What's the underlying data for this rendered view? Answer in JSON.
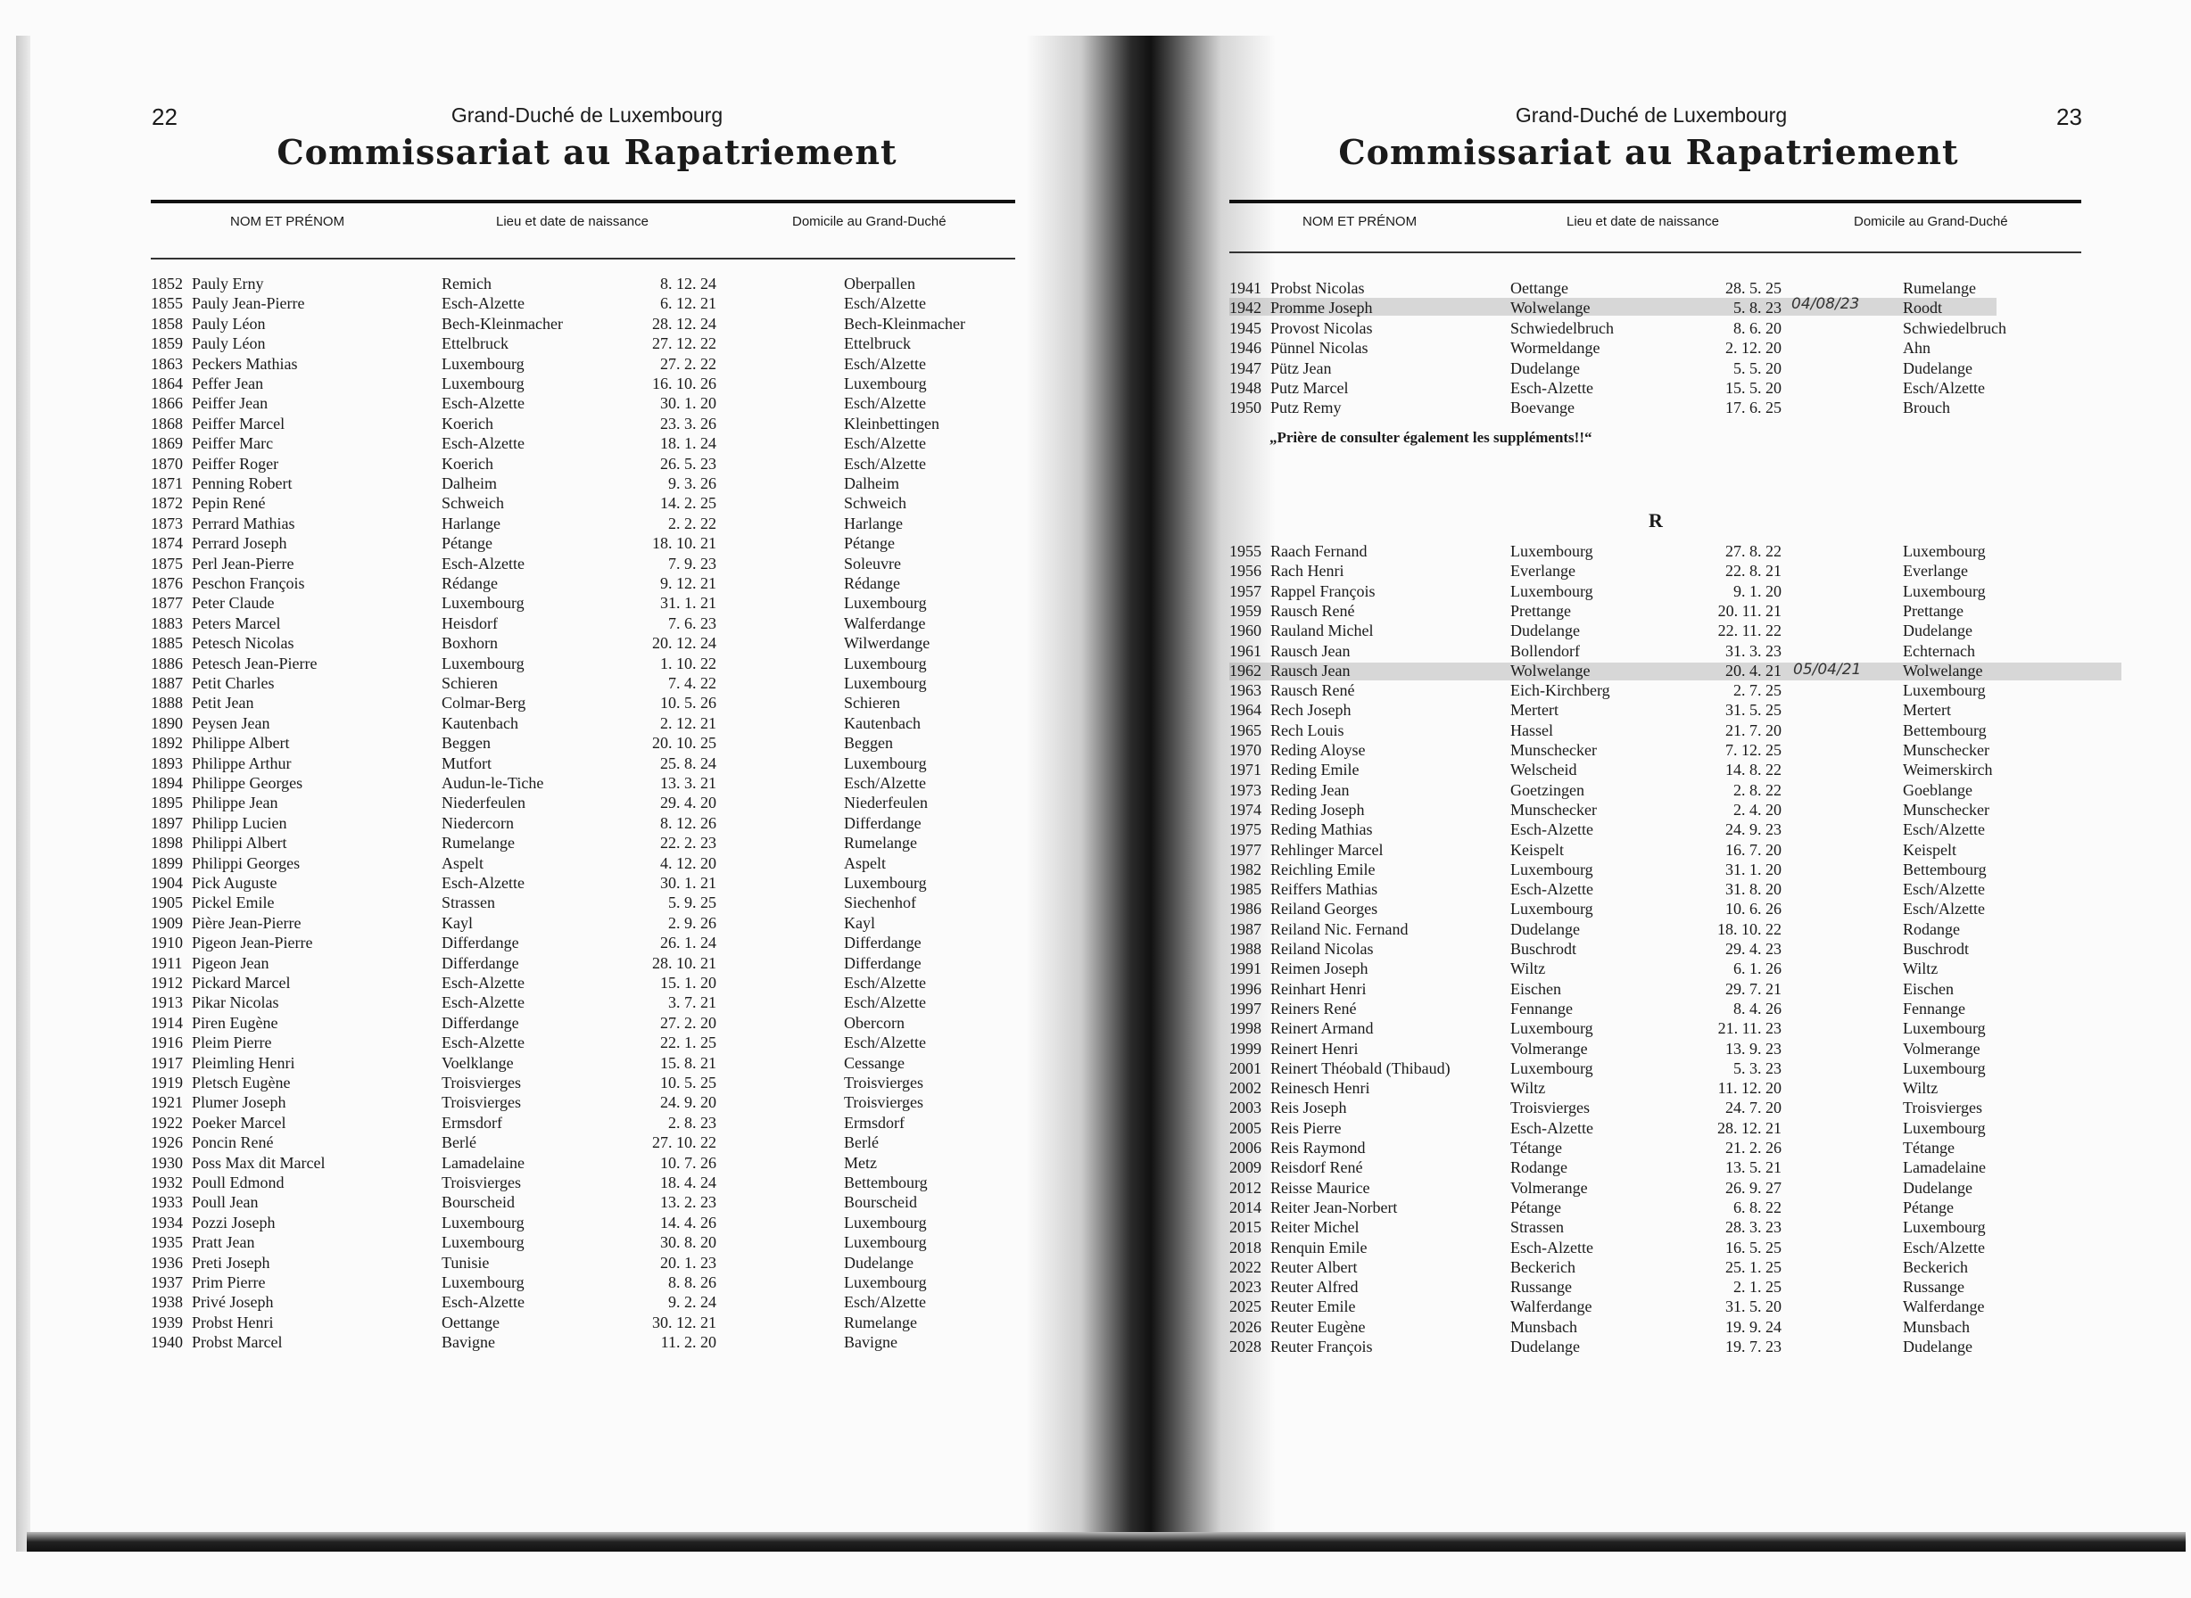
{
  "left_page": {
    "page_number": "22",
    "running_head": "Grand-Duché de Luxembourg",
    "title": "Commissariat au Rapatriement",
    "columns": [
      "NOM ET PRÉNOM",
      "Lieu et date de naissance",
      "Domicile au Grand-Duché"
    ],
    "rows": [
      [
        "1852",
        "Pauly Erny",
        "Remich",
        "8. 12. 24",
        "Oberpallen"
      ],
      [
        "1855",
        "Pauly Jean-Pierre",
        "Esch-Alzette",
        "6. 12. 21",
        "Esch/Alzette"
      ],
      [
        "1858",
        "Pauly Léon",
        "Bech-Kleinmacher",
        "28. 12. 24",
        "Bech-Kleinmacher"
      ],
      [
        "1859",
        "Pauly Léon",
        "Ettelbruck",
        "27. 12. 22",
        "Ettelbruck"
      ],
      [
        "1863",
        "Peckers Mathias",
        "Luxembourg",
        "27. 2. 22",
        "Esch/Alzette"
      ],
      [
        "1864",
        "Peffer Jean",
        "Luxembourg",
        "16. 10. 26",
        "Luxembourg"
      ],
      [
        "1866",
        "Peiffer Jean",
        "Esch-Alzette",
        "30. 1. 20",
        "Esch/Alzette"
      ],
      [
        "1868",
        "Peiffer Marcel",
        "Koerich",
        "23. 3. 26",
        "Kleinbettingen"
      ],
      [
        "1869",
        "Peiffer Marc",
        "Esch-Alzette",
        "18. 1. 24",
        "Esch/Alzette"
      ],
      [
        "1870",
        "Peiffer Roger",
        "Koerich",
        "26. 5. 23",
        "Esch/Alzette"
      ],
      [
        "1871",
        "Penning Robert",
        "Dalheim",
        "9. 3. 26",
        "Dalheim"
      ],
      [
        "1872",
        "Pepin René",
        "Schweich",
        "14. 2. 25",
        "Schweich"
      ],
      [
        "1873",
        "Perrard Mathias",
        "Harlange",
        "2. 2. 22",
        "Harlange"
      ],
      [
        "1874",
        "Perrard Joseph",
        "Pétange",
        "18. 10. 21",
        "Pétange"
      ],
      [
        "1875",
        "Perl Jean-Pierre",
        "Esch-Alzette",
        "7. 9. 23",
        "Soleuvre"
      ],
      [
        "1876",
        "Peschon François",
        "Rédange",
        "9. 12. 21",
        "Rédange"
      ],
      [
        "1877",
        "Peter Claude",
        "Luxembourg",
        "31. 1. 21",
        "Luxembourg"
      ],
      [
        "1883",
        "Peters Marcel",
        "Heisdorf",
        "7. 6. 23",
        "Walferdange"
      ],
      [
        "1885",
        "Petesch Nicolas",
        "Boxhorn",
        "20. 12. 24",
        "Wilwerdange"
      ],
      [
        "1886",
        "Petesch Jean-Pierre",
        "Luxembourg",
        "1. 10. 22",
        "Luxembourg"
      ],
      [
        "1887",
        "Petit Charles",
        "Schieren",
        "7. 4. 22",
        "Luxembourg"
      ],
      [
        "1888",
        "Petit Jean",
        "Colmar-Berg",
        "10. 5. 26",
        "Schieren"
      ],
      [
        "1890",
        "Peysen Jean",
        "Kautenbach",
        "2. 12. 21",
        "Kautenbach"
      ],
      [
        "1892",
        "Philippe Albert",
        "Beggen",
        "20. 10. 25",
        "Beggen"
      ],
      [
        "1893",
        "Philippe Arthur",
        "Mutfort",
        "25. 8. 24",
        "Luxembourg"
      ],
      [
        "1894",
        "Philippe Georges",
        "Audun-le-Tiche",
        "13. 3. 21",
        "Esch/Alzette"
      ],
      [
        "1895",
        "Philippe Jean",
        "Niederfeulen",
        "29. 4. 20",
        "Niederfeulen"
      ],
      [
        "1897",
        "Philipp Lucien",
        "Niedercorn",
        "8. 12. 26",
        "Differdange"
      ],
      [
        "1898",
        "Philippi Albert",
        "Rumelange",
        "22. 2. 23",
        "Rumelange"
      ],
      [
        "1899",
        "Philippi Georges",
        "Aspelt",
        "4. 12. 20",
        "Aspelt"
      ],
      [
        "1904",
        "Pick Auguste",
        "Esch-Alzette",
        "30. 1. 21",
        "Luxembourg"
      ],
      [
        "1905",
        "Pickel Emile",
        "Strassen",
        "5. 9. 25",
        "Siechenhof"
      ],
      [
        "1909",
        "Pière Jean-Pierre",
        "Kayl",
        "2. 9. 26",
        "Kayl"
      ],
      [
        "1910",
        "Pigeon Jean-Pierre",
        "Differdange",
        "26. 1. 24",
        "Differdange"
      ],
      [
        "1911",
        "Pigeon Jean",
        "Differdange",
        "28. 10. 21",
        "Differdange"
      ],
      [
        "1912",
        "Pickard Marcel",
        "Esch-Alzette",
        "15. 1. 20",
        "Esch/Alzette"
      ],
      [
        "1913",
        "Pikar Nicolas",
        "Esch-Alzette",
        "3. 7. 21",
        "Esch/Alzette"
      ],
      [
        "1914",
        "Piren Eugène",
        "Differdange",
        "27. 2. 20",
        "Obercorn"
      ],
      [
        "1916",
        "Pleim Pierre",
        "Esch-Alzette",
        "22. 1. 25",
        "Esch/Alzette"
      ],
      [
        "1917",
        "Pleimling Henri",
        "Voelklange",
        "15. 8. 21",
        "Cessange"
      ],
      [
        "1919",
        "Pletsch Eugène",
        "Troisvierges",
        "10. 5. 25",
        "Troisvierges"
      ],
      [
        "1921",
        "Plumer Joseph",
        "Troisvierges",
        "24. 9. 20",
        "Troisvierges"
      ],
      [
        "1922",
        "Poeker Marcel",
        "Ermsdorf",
        "2. 8. 23",
        "Ermsdorf"
      ],
      [
        "1926",
        "Poncin René",
        "Berlé",
        "27. 10. 22",
        "Berlé"
      ],
      [
        "1930",
        "Poss Max dit Marcel",
        "Lamadelaine",
        "10. 7. 26",
        "Metz"
      ],
      [
        "1932",
        "Poull Edmond",
        "Troisvierges",
        "18. 4. 24",
        "Bettembourg"
      ],
      [
        "1933",
        "Poull Jean",
        "Bourscheid",
        "13. 2. 23",
        "Bourscheid"
      ],
      [
        "1934",
        "Pozzi Joseph",
        "Luxembourg",
        "14. 4. 26",
        "Luxembourg"
      ],
      [
        "1935",
        "Pratt Jean",
        "Luxembourg",
        "30. 8. 20",
        "Luxembourg"
      ],
      [
        "1936",
        "Preti Joseph",
        "Tunisie",
        "20. 1. 23",
        "Dudelange"
      ],
      [
        "1937",
        "Prim Pierre",
        "Luxembourg",
        "8. 8. 26",
        "Luxembourg"
      ],
      [
        "1938",
        "Privé Joseph",
        "Esch-Alzette",
        "9. 2. 24",
        "Esch/Alzette"
      ],
      [
        "1939",
        "Probst Henri",
        "Oettange",
        "30. 12. 21",
        "Rumelange"
      ],
      [
        "1940",
        "Probst Marcel",
        "Bavigne",
        "11. 2. 20",
        "Bavigne"
      ]
    ]
  },
  "right_page": {
    "page_number": "23",
    "running_head": "Grand-Duché de Luxembourg",
    "title": "Commissariat au Rapatriement",
    "columns": [
      "NOM ET PRÉNOM",
      "Lieu et date de naissance",
      "Domicile au Grand-Duché"
    ],
    "rows_p": [
      [
        "1941",
        "Probst Nicolas",
        "Oettange",
        "28. 5. 25",
        "Rumelange"
      ],
      [
        "1942",
        "Promme Joseph",
        "Wolwelange",
        "5. 8. 23",
        "Roodt"
      ],
      [
        "1945",
        "Provost Nicolas",
        "Schwiedelbruch",
        "8. 6. 20",
        "Schwiedelbruch"
      ],
      [
        "1946",
        "Pünnel Nicolas",
        "Wormeldange",
        "2. 12. 20",
        "Ahn"
      ],
      [
        "1947",
        "Pütz Jean",
        "Dudelange",
        "5. 5. 20",
        "Dudelange"
      ],
      [
        "1948",
        "Putz Marcel",
        "Esch-Alzette",
        "15. 5. 20",
        "Esch/Alzette"
      ],
      [
        "1950",
        "Putz Remy",
        "Boevange",
        "17. 6. 25",
        "Brouch"
      ]
    ],
    "note": "„Prière de consulter également les suppléments!!“",
    "section_letter": "R",
    "rows_r": [
      [
        "1955",
        "Raach Fernand",
        "Luxembourg",
        "27. 8. 22",
        "Luxembourg"
      ],
      [
        "1956",
        "Rach Henri",
        "Everlange",
        "22. 8. 21",
        "Everlange"
      ],
      [
        "1957",
        "Rappel François",
        "Luxembourg",
        "9. 1. 20",
        "Luxembourg"
      ],
      [
        "1959",
        "Rausch René",
        "Prettange",
        "20. 11. 21",
        "Prettange"
      ],
      [
        "1960",
        "Rauland Michel",
        "Dudelange",
        "22. 11. 22",
        "Dudelange"
      ],
      [
        "1961",
        "Rausch Jean",
        "Bollendorf",
        "31. 3. 23",
        "Echternach"
      ],
      [
        "1962",
        "Rausch Jean",
        "Wolwelange",
        "20. 4. 21",
        "Wolwelange"
      ],
      [
        "1963",
        "Rausch René",
        "Eich-Kirchberg",
        "2. 7. 25",
        "Luxembourg"
      ],
      [
        "1964",
        "Rech Joseph",
        "Mertert",
        "31. 5. 25",
        "Mertert"
      ],
      [
        "1965",
        "Rech Louis",
        "Hassel",
        "21. 7. 20",
        "Bettembourg"
      ],
      [
        "1970",
        "Reding Aloyse",
        "Munschecker",
        "7. 12. 25",
        "Munschecker"
      ],
      [
        "1971",
        "Reding Emile",
        "Welscheid",
        "14. 8. 22",
        "Weimerskirch"
      ],
      [
        "1973",
        "Reding Jean",
        "Goetzingen",
        "2. 8. 22",
        "Goeblange"
      ],
      [
        "1974",
        "Reding Joseph",
        "Munschecker",
        "2. 4. 20",
        "Munschecker"
      ],
      [
        "1975",
        "Reding Mathias",
        "Esch-Alzette",
        "24. 9. 23",
        "Esch/Alzette"
      ],
      [
        "1977",
        "Rehlinger Marcel",
        "Keispelt",
        "16. 7. 20",
        "Keispelt"
      ],
      [
        "1982",
        "Reichling Emile",
        "Luxembourg",
        "31. 1. 20",
        "Bettembourg"
      ],
      [
        "1985",
        "Reiffers Mathias",
        "Esch-Alzette",
        "31. 8. 20",
        "Esch/Alzette"
      ],
      [
        "1986",
        "Reiland Georges",
        "Luxembourg",
        "10. 6. 26",
        "Esch/Alzette"
      ],
      [
        "1987",
        "Reiland Nic. Fernand",
        "Dudelange",
        "18. 10. 22",
        "Rodange"
      ],
      [
        "1988",
        "Reiland Nicolas",
        "Buschrodt",
        "29. 4. 23",
        "Buschrodt"
      ],
      [
        "1991",
        "Reimen Joseph",
        "Wiltz",
        "6. 1. 26",
        "Wiltz"
      ],
      [
        "1996",
        "Reinhart Henri",
        "Eischen",
        "29. 7. 21",
        "Eischen"
      ],
      [
        "1997",
        "Reiners René",
        "Fennange",
        "8. 4. 26",
        "Fennange"
      ],
      [
        "1998",
        "Reinert Armand",
        "Luxembourg",
        "21. 11. 23",
        "Luxembourg"
      ],
      [
        "1999",
        "Reinert Henri",
        "Volmerange",
        "13. 9. 23",
        "Volmerange"
      ],
      [
        "2001",
        "Reinert Théobald (Thibaud)",
        "Luxembourg",
        "5. 3. 23",
        "Luxembourg"
      ],
      [
        "2002",
        "Reinesch Henri",
        "Wiltz",
        "11. 12. 20",
        "Wiltz"
      ],
      [
        "2003",
        "Reis Joseph",
        "Troisvierges",
        "24. 7. 20",
        "Troisvierges"
      ],
      [
        "2005",
        "Reis Pierre",
        "Esch-Alzette",
        "28. 12. 21",
        "Luxembourg"
      ],
      [
        "2006",
        "Reis Raymond",
        "Tétange",
        "21. 2. 26",
        "Tétange"
      ],
      [
        "2009",
        "Reisdorf René",
        "Rodange",
        "13. 5. 21",
        "Lamadelaine"
      ],
      [
        "2012",
        "Reisse Maurice",
        "Volmerange",
        "26. 9. 27",
        "Dudelange"
      ],
      [
        "2014",
        "Reiter Jean-Norbert",
        "Pétange",
        "6. 8. 22",
        "Pétange"
      ],
      [
        "2015",
        "Reiter Michel",
        "Strassen",
        "28. 3. 23",
        "Luxembourg"
      ],
      [
        "2018",
        "Renquin Emile",
        "Esch-Alzette",
        "16. 5. 25",
        "Esch/Alzette"
      ],
      [
        "2022",
        "Reuter Albert",
        "Beckerich",
        "25. 1. 25",
        "Beckerich"
      ],
      [
        "2023",
        "Reuter Alfred",
        "Russange",
        "2. 1. 25",
        "Russange"
      ],
      [
        "2025",
        "Reuter Emile",
        "Walferdange",
        "31. 5. 20",
        "Walferdange"
      ],
      [
        "2026",
        "Reuter Eugène",
        "Munsbach",
        "19. 9. 24",
        "Munsbach"
      ],
      [
        "2028",
        "Reuter François",
        "Dudelange",
        "19. 7. 23",
        "Dudelange"
      ]
    ],
    "handwritten": [
      "04/08/23",
      "05/04/21"
    ]
  }
}
